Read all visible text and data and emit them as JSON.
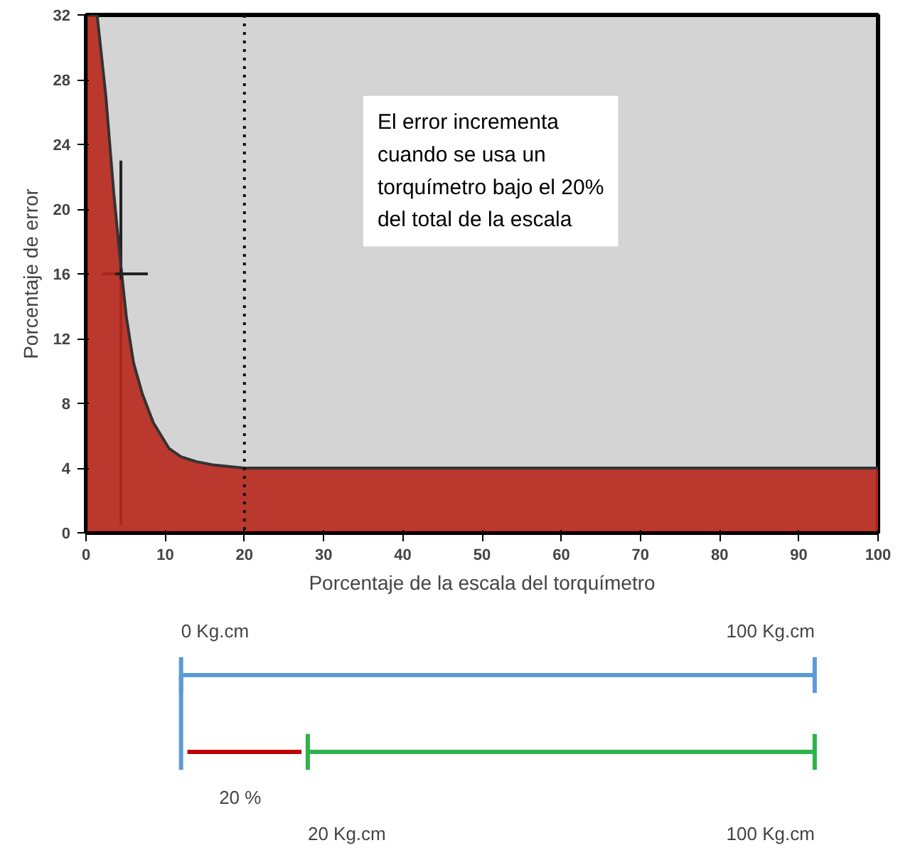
{
  "chart_data": [
    {
      "type": "area",
      "xlabel": "Porcentaje de la escala del torquímetro",
      "ylabel": "Porcentaje de error",
      "x": [
        0,
        1.4,
        2.5,
        3.5,
        4.4,
        5.1,
        6,
        7.1,
        8.5,
        10.5,
        12,
        13.9,
        16,
        20,
        30,
        40,
        50,
        60,
        70,
        80,
        90,
        100
      ],
      "series": [
        {
          "color": "#b8271c",
          "values": [
            32,
            32,
            27,
            21,
            16.5,
            13.3,
            10.5,
            8.6,
            6.8,
            5.2,
            4.7,
            4.4,
            4.2,
            4,
            4,
            4,
            4,
            4,
            4,
            4,
            4,
            4
          ]
        },
        {
          "type": "scatter",
          "color": "#222222",
          "x": [
            4.4
          ],
          "values": [
            16
          ],
          "errors": [
            [
              0.5,
              23
            ]
          ],
          "xerrors": [
            [
              2,
              7.8
            ]
          ],
          "marker": "cross"
        }
      ],
      "xlim": [
        0,
        100
      ],
      "ylim": [
        0,
        32
      ],
      "xticks": [
        0,
        10,
        20,
        30,
        40,
        50,
        60,
        70,
        80,
        90,
        100
      ],
      "yticks": [
        0,
        4,
        8,
        12,
        16,
        20,
        24,
        28,
        32
      ],
      "ref_lines": [
        {
          "axis": "x",
          "value": 20,
          "line_style": "dotted",
          "color": "#111111"
        }
      ],
      "annotations": [
        "El error incrementa\ncuando se usa un\ntorquímetro bajo el 20%\ndel total de la escala"
      ],
      "grid": false
    },
    {
      "type": "other",
      "annotations": [
        "0 Kg.cm",
        "100 Kg.cm",
        "20 %",
        "20 Kg.cm",
        "100 Kg.cm"
      ]
    }
  ]
}
